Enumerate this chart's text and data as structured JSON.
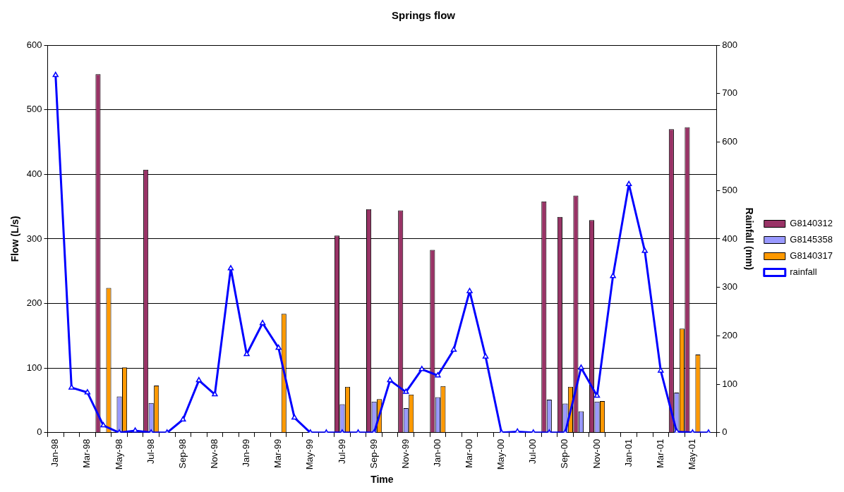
{
  "chart_data": {
    "type": "bar",
    "title": "Springs flow",
    "xlabel": "Time",
    "ylabel": "Flow (L/s)",
    "y2label": "Rainfall (mm)",
    "categories": [
      "Jan-98",
      null,
      "Mar-98",
      null,
      "May-98",
      null,
      "Jul-98",
      null,
      "Sep-98",
      null,
      "Nov-98",
      null,
      "Jan-99",
      null,
      "Mar-99",
      null,
      "May-99",
      null,
      "Jul-99",
      null,
      "Sep-99",
      null,
      "Nov-99",
      null,
      "Jan-00",
      null,
      "Mar-00",
      null,
      "May-00",
      null,
      "Jul-00",
      null,
      "Sep-00",
      null,
      "Nov-00",
      null,
      "Jan-01",
      null,
      "Mar-01",
      null,
      "May-01",
      null
    ],
    "series": [
      {
        "name": "G8140312",
        "color": "#993366",
        "values": [
          null,
          null,
          null,
          555,
          null,
          null,
          407,
          null,
          null,
          null,
          null,
          null,
          null,
          null,
          null,
          null,
          null,
          null,
          305,
          null,
          346,
          null,
          344,
          null,
          283,
          null,
          null,
          null,
          null,
          null,
          null,
          358,
          334,
          367,
          329,
          null,
          null,
          null,
          null,
          470,
          473,
          null
        ]
      },
      {
        "name": "G8145358",
        "color": "#9999ff",
        "values": [
          null,
          null,
          null,
          null,
          56,
          null,
          46,
          null,
          null,
          null,
          null,
          null,
          null,
          null,
          null,
          null,
          null,
          null,
          44,
          null,
          48,
          null,
          38,
          null,
          55,
          null,
          null,
          null,
          null,
          null,
          null,
          51,
          45,
          33,
          48,
          null,
          null,
          null,
          null,
          62,
          null,
          null
        ]
      },
      {
        "name": "G8140317",
        "color": "#ff9900",
        "values": [
          null,
          null,
          null,
          224,
          101,
          null,
          73,
          null,
          null,
          null,
          null,
          null,
          null,
          null,
          184,
          null,
          null,
          null,
          71,
          null,
          52,
          null,
          59,
          null,
          72,
          null,
          null,
          null,
          null,
          null,
          null,
          null,
          71,
          null,
          49,
          null,
          null,
          null,
          null,
          161,
          121,
          null
        ]
      },
      {
        "name": "rainfall",
        "type": "line",
        "axis": "y2",
        "color": "#0000ff",
        "values": [
          738,
          93,
          83,
          15,
          0,
          4,
          0,
          0,
          27,
          108,
          79,
          339,
          162,
          226,
          175,
          31,
          0,
          0,
          0,
          0,
          0,
          108,
          84,
          131,
          118,
          171,
          292,
          157,
          0,
          2,
          0,
          0,
          0,
          134,
          76,
          323,
          513,
          375,
          128,
          2,
          0,
          0
        ]
      }
    ],
    "ylim": [
      0,
      600
    ],
    "yticks": [
      0,
      100,
      200,
      300,
      400,
      500,
      600
    ],
    "y2lim": [
      0,
      800
    ],
    "y2ticks": [
      0,
      100,
      200,
      300,
      400,
      500,
      600,
      700,
      800
    ],
    "grid": "y",
    "legend": "right",
    "marker": "triangle",
    "line_style": "solid"
  }
}
